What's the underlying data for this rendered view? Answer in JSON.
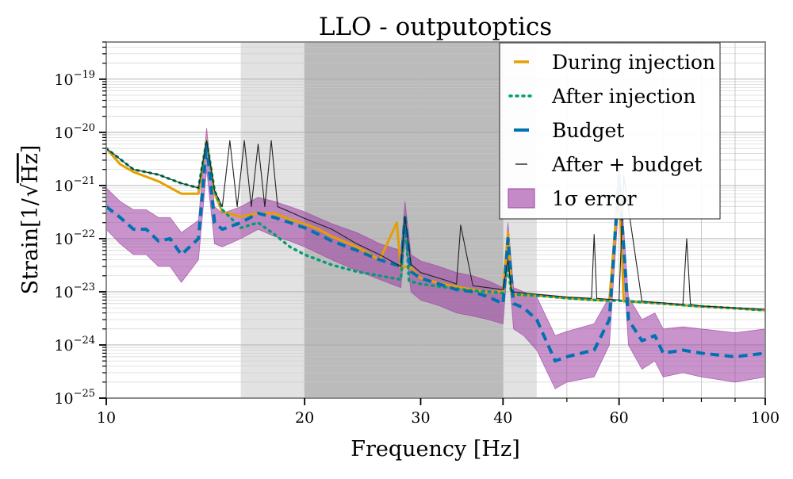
{
  "chart_data": {
    "type": "line",
    "title": "LLO - outputoptics",
    "xlabel": "Frequency [Hz]",
    "ylabel_prefix": "Strain[1/",
    "ylabel_radicand": "Hz",
    "ylabel_suffix": "]",
    "xscale": "log",
    "yscale": "log",
    "xlim": [
      10,
      100
    ],
    "ylim": [
      1e-25,
      5e-19
    ],
    "grid": true,
    "legend_position": "top-right",
    "x_ticks": [
      {
        "value": 10,
        "label": "10"
      },
      {
        "value": 20,
        "label": "20"
      },
      {
        "value": 30,
        "label": "30"
      },
      {
        "value": 40,
        "label": "40"
      },
      {
        "value": 60,
        "label": "60"
      },
      {
        "value": 100,
        "label": "100"
      }
    ],
    "y_ticks": [
      {
        "value": 1e-25,
        "mantissa": "10",
        "exponent": "−25"
      },
      {
        "value": 1e-24,
        "mantissa": "10",
        "exponent": "−24"
      },
      {
        "value": 1e-23,
        "mantissa": "10",
        "exponent": "−23"
      },
      {
        "value": 1e-22,
        "mantissa": "10",
        "exponent": "−22"
      },
      {
        "value": 1e-21,
        "mantissa": "10",
        "exponent": "−21"
      },
      {
        "value": 1e-20,
        "mantissa": "10",
        "exponent": "−20"
      },
      {
        "value": 1e-19,
        "mantissa": "10",
        "exponent": "−19"
      }
    ],
    "shaded_regions": [
      {
        "name": "light-band",
        "x_start": 16,
        "x_end": 45,
        "color": "#e2e2e2"
      },
      {
        "name": "dark-band",
        "x_start": 20,
        "x_end": 40,
        "color": "#bbbbbb"
      }
    ],
    "series": [
      {
        "name": "During injection",
        "color": "#e69f00",
        "style": "solid",
        "x": [
          10,
          10.5,
          11,
          12,
          13,
          13.8,
          14.2,
          14.6,
          15,
          16,
          17,
          18,
          19,
          20,
          21,
          22,
          24,
          26,
          27.6,
          28,
          28.4,
          29,
          30,
          32,
          34,
          36,
          38,
          40,
          40.7,
          41.2,
          42,
          45,
          50,
          55,
          58,
          60,
          61,
          65,
          70,
          75,
          80,
          90,
          100
        ],
        "y": [
          5e-21,
          2.5e-21,
          1.8e-21,
          1.2e-21,
          7e-22,
          7e-22,
          7e-21,
          7e-22,
          3.2e-22,
          2.6e-22,
          3e-22,
          3e-22,
          2.3e-22,
          1.9e-22,
          1.5e-22,
          1.1e-22,
          7e-23,
          4e-23,
          2e-22,
          2.6e-23,
          3e-23,
          2.8e-23,
          1.8e-23,
          1.45e-23,
          1.25e-23,
          1.1e-23,
          9.8e-24,
          1e-23,
          1.3e-22,
          9e-24,
          8.8e-24,
          8.5e-24,
          7.6e-24,
          7e-24,
          6.8e-24,
          1.2e-21,
          6.6e-24,
          6.4e-24,
          6e-24,
          5.6e-24,
          5.3e-24,
          4.9e-24,
          4.5e-24
        ]
      },
      {
        "name": "After injection",
        "color": "#009e73",
        "style": "dotted",
        "x": [
          10,
          11,
          12,
          13,
          13.8,
          14.2,
          14.6,
          15,
          16,
          17,
          18,
          19,
          20,
          22,
          24,
          26,
          28,
          28.4,
          28.8,
          30,
          33,
          36,
          40,
          40.7,
          41.2,
          45,
          50,
          55,
          60,
          61,
          65,
          70,
          80,
          90,
          100
        ],
        "y": [
          5e-21,
          2e-21,
          1.6e-21,
          1.1e-21,
          9e-22,
          7e-21,
          8e-22,
          3.5e-22,
          1.6e-22,
          2e-22,
          1.2e-22,
          7e-23,
          5e-23,
          3.2e-23,
          2.4e-23,
          2e-23,
          1.7e-23,
          2.5e-22,
          1.6e-23,
          1.4e-23,
          1.2e-23,
          1.05e-23,
          9.5e-24,
          3e-23,
          9e-24,
          8.5e-24,
          7.6e-24,
          7e-24,
          6.8e-24,
          6.7e-24,
          6.4e-24,
          6e-24,
          5.3e-24,
          4.9e-24,
          4.5e-24
        ]
      },
      {
        "name": "Budget",
        "color": "#0072b2",
        "style": "dashed",
        "x": [
          10,
          10.5,
          11,
          11.5,
          12,
          12.5,
          13,
          13.8,
          14.2,
          14.6,
          15,
          16,
          17,
          18,
          19,
          20,
          21,
          22,
          24,
          26,
          28,
          28.4,
          29,
          30,
          32,
          34,
          36,
          38,
          40,
          40.7,
          41.5,
          43,
          45,
          48,
          50,
          55,
          58,
          60,
          62,
          65,
          68,
          70,
          75,
          80,
          90,
          100
        ],
        "y": [
          4e-22,
          2.5e-22,
          1.5e-22,
          1.5e-22,
          9e-23,
          1e-22,
          5e-23,
          1e-22,
          6e-21,
          2e-22,
          1.5e-22,
          2e-22,
          3e-22,
          2.5e-22,
          2e-22,
          1.6e-22,
          1.2e-22,
          9e-23,
          6e-23,
          4e-23,
          3e-23,
          2.5e-22,
          2.4e-23,
          1.8e-23,
          1.4e-23,
          1.1e-23,
          1e-23,
          8e-24,
          6e-24,
          1e-22,
          6e-24,
          5e-24,
          3e-24,
          5e-25,
          6e-25,
          8e-25,
          3e-24,
          1.5e-21,
          3e-24,
          1.2e-24,
          1.5e-24,
          7e-25,
          8e-25,
          7e-25,
          6e-25,
          7e-25
        ]
      },
      {
        "name": "After + budget",
        "color": "#222222",
        "style": "thin",
        "x": [
          10,
          11,
          12,
          13,
          13.8,
          14.2,
          14.6,
          15,
          15.4,
          15.8,
          16.2,
          16.6,
          17,
          17.4,
          17.8,
          18.2,
          19,
          20,
          22,
          24,
          26,
          28,
          28.4,
          29,
          30,
          33,
          34,
          34.5,
          36,
          40,
          40.7,
          41.2,
          45,
          50,
          54.5,
          55,
          55.5,
          60,
          61,
          65,
          70,
          75,
          76,
          77,
          80,
          90,
          100
        ],
        "y": [
          5e-21,
          2e-21,
          1.6e-21,
          1.1e-21,
          9e-22,
          7e-21,
          8e-22,
          4e-22,
          7e-21,
          4e-22,
          7e-21,
          4e-22,
          6e-21,
          4e-22,
          7e-21,
          4e-22,
          3.2e-22,
          2.4e-22,
          1.5e-22,
          8e-23,
          5e-23,
          3e-23,
          2.6e-22,
          3.3e-23,
          2.3e-23,
          1.6e-23,
          1.4e-23,
          1.8e-22,
          1.3e-23,
          1.1e-23,
          4e-23,
          1e-23,
          9e-24,
          8e-24,
          7.5e-24,
          1.2e-22,
          7.5e-24,
          7e-24,
          1.5e-21,
          6.6e-24,
          6.2e-24,
          5.8e-24,
          1e-22,
          5.8e-24,
          5.4e-24,
          5e-24,
          4.7e-24
        ]
      }
    ],
    "error_band": {
      "name": "1σ error",
      "color": "#9c3da3",
      "x": [
        10,
        10.5,
        11,
        11.5,
        12,
        12.5,
        13,
        13.8,
        14.2,
        14.6,
        15,
        16,
        17,
        18,
        19,
        20,
        22,
        24,
        26,
        28,
        28.4,
        29,
        30,
        32,
        34,
        36,
        38,
        40,
        40.7,
        41.5,
        43,
        45,
        48,
        50,
        55,
        58,
        60,
        62,
        65,
        68,
        70,
        75,
        80,
        90,
        100
      ],
      "lower": [
        1.5e-22,
        8e-23,
        5e-23,
        5e-23,
        3e-23,
        3e-23,
        1.5e-23,
        4e-23,
        2e-21,
        8e-23,
        7e-23,
        1e-22,
        1.5e-22,
        1.1e-22,
        9e-23,
        7e-23,
        4e-23,
        2.5e-23,
        1.7e-23,
        1.2e-23,
        1e-22,
        1e-23,
        7e-24,
        5.5e-24,
        4e-24,
        3.5e-24,
        3e-24,
        2.5e-24,
        4e-23,
        2e-24,
        1.5e-24,
        8e-25,
        1.5e-25,
        2e-25,
        2.5e-25,
        1e-24,
        6e-22,
        1e-24,
        3.5e-25,
        5e-25,
        2.5e-25,
        3e-25,
        2.5e-25,
        2e-25,
        2.5e-25
      ],
      "upper": [
        9e-22,
        5e-22,
        3.5e-22,
        3.5e-22,
        2.5e-22,
        2.5e-22,
        1.3e-22,
        2.2e-22,
        1.2e-20,
        4e-22,
        3e-22,
        4e-22,
        6e-22,
        5e-22,
        4e-22,
        3.2e-22,
        1.9e-22,
        1.3e-22,
        8e-23,
        6e-23,
        5e-22,
        5e-23,
        3.8e-23,
        3e-23,
        2.3e-23,
        2e-23,
        1.6e-23,
        1.2e-23,
        2e-22,
        1.2e-23,
        1e-23,
        8e-24,
        1.5e-24,
        1.8e-24,
        2.5e-24,
        8e-24,
        3e-21,
        8e-24,
        3e-24,
        4e-24,
        2e-24,
        2.2e-24,
        2e-24,
        1.7e-24,
        2e-24
      ]
    }
  }
}
